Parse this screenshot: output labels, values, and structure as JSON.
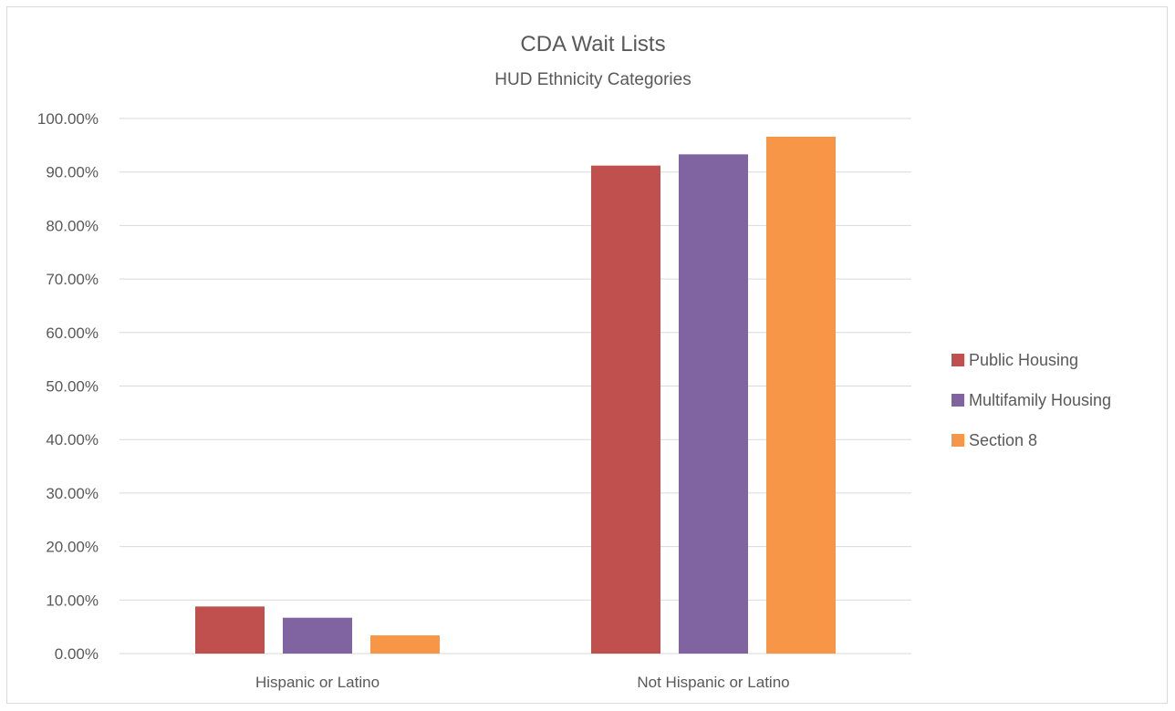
{
  "chart_data": {
    "type": "bar",
    "title": "CDA Wait Lists",
    "subtitle": "HUD Ethnicity Categories",
    "xlabel": "",
    "ylabel": "",
    "categories": [
      "Hispanic or Latino",
      "Not Hispanic or Latino"
    ],
    "series": [
      {
        "name": "Public Housing",
        "color": "#c0504d",
        "values": [
          8.8,
          91.2
        ]
      },
      {
        "name": "Multifamily Housing",
        "color": "#8064a2",
        "values": [
          6.7,
          93.3
        ]
      },
      {
        "name": "Section 8",
        "color": "#f79646",
        "values": [
          3.4,
          96.6
        ]
      }
    ],
    "ylim": [
      0,
      100
    ],
    "yticks": [
      "0.00%",
      "10.00%",
      "20.00%",
      "30.00%",
      "40.00%",
      "50.00%",
      "60.00%",
      "70.00%",
      "80.00%",
      "90.00%",
      "100.00%"
    ],
    "grid": true,
    "legend_position": "right"
  }
}
